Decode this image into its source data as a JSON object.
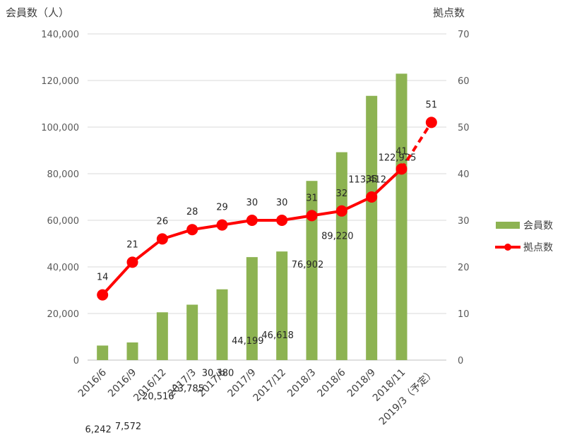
{
  "chart_data": {
    "type": "bar",
    "categories": [
      "2016/6",
      "2016/9",
      "2016/12",
      "2017/3",
      "2017/6",
      "2017/9",
      "2017/12",
      "2018/3",
      "2018/6",
      "2018/9",
      "2018/11",
      "2019/3（予定）"
    ],
    "series": [
      {
        "name": "会員数",
        "type": "bar",
        "axis": "left",
        "color": "#8db352",
        "values": [
          6242,
          7572,
          20516,
          23785,
          30380,
          44199,
          46618,
          76902,
          89220,
          113412,
          122925,
          null
        ],
        "labels": [
          "6,242",
          "7,572",
          "20,516",
          "23,785",
          "30,380",
          "44,199",
          "46,618",
          "76,902",
          "89,220",
          "113,412",
          "122,925",
          ""
        ]
      },
      {
        "name": "拠点数",
        "type": "line",
        "axis": "right",
        "color": "#ff0000",
        "values": [
          14,
          21,
          26,
          28,
          29,
          30,
          30,
          31,
          32,
          35,
          41,
          51
        ],
        "labels": [
          "14",
          "21",
          "26",
          "28",
          "29",
          "30",
          "30",
          "31",
          "32",
          "35",
          "41",
          "51"
        ],
        "dashed_last_segment": true
      }
    ],
    "y_left": {
      "title": "会員数（人）",
      "range": [
        0,
        140000
      ],
      "ticks": [
        "0",
        "20,000",
        "40,000",
        "60,000",
        "80,000",
        "100,000",
        "120,000",
        "140,000"
      ]
    },
    "y_right": {
      "title": "拠点数",
      "range": [
        0,
        70
      ],
      "ticks": [
        "0",
        "10",
        "20",
        "30",
        "40",
        "50",
        "60",
        "70"
      ]
    },
    "grid": true,
    "legend": {
      "placement": "right",
      "entries": [
        "会員数",
        "拠点数"
      ]
    }
  }
}
